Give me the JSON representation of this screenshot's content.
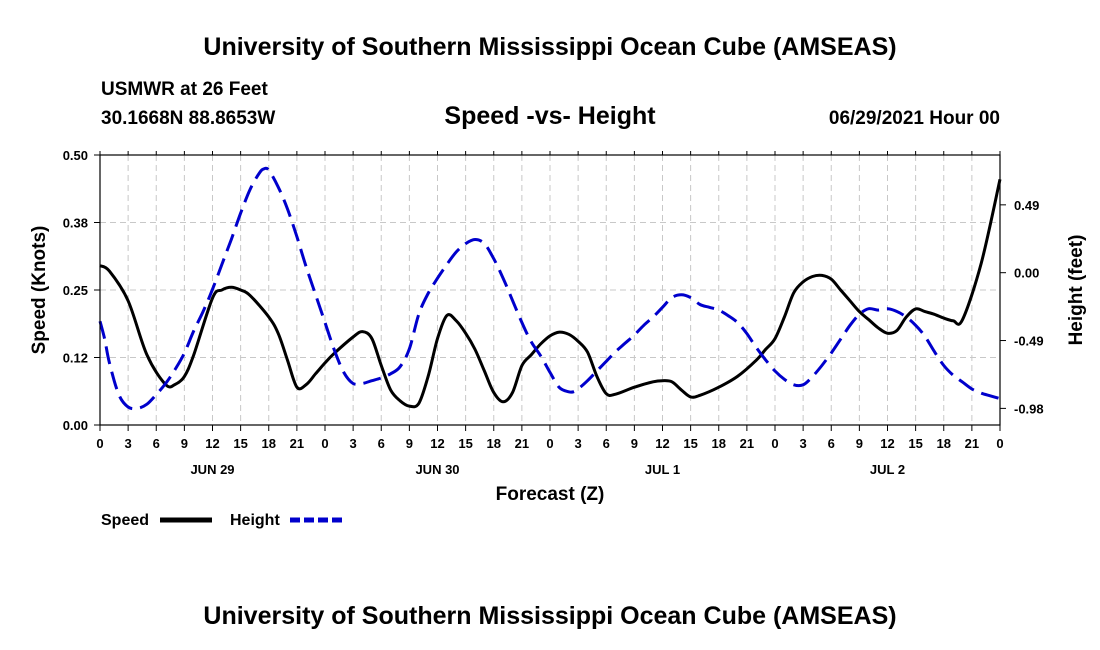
{
  "header": {
    "title": "University of Southern Mississippi Ocean Cube (AMSEAS)",
    "station": "USMWR at 26 Feet",
    "location": "30.1668N  88.8653W",
    "chart_title": "Speed -vs- Height",
    "datetime": "06/29/2021 Hour 00"
  },
  "footer": {
    "title": "University of Southern Mississippi Ocean Cube (AMSEAS)"
  },
  "legend": {
    "speed_label": "Speed",
    "height_label": "Height",
    "speed_color": "#000000",
    "height_color": "#0000cc"
  },
  "chart_data": {
    "type": "line",
    "title": "Speed -vs- Height",
    "xlabel": "Forecast (Z)",
    "ylabel_left": "Speed (Knots)",
    "ylabel_right": "Height (feet)",
    "x_range_hours": [
      0,
      96
    ],
    "ylim_left": [
      0,
      0.5
    ],
    "ylim_right": [
      -1.1,
      0.85
    ],
    "left_ticks": [
      "0.00",
      "0.12",
      "0.25",
      "0.38",
      "0.50"
    ],
    "left_tick_values": [
      0,
      0.125,
      0.25,
      0.375,
      0.5
    ],
    "right_ticks": [
      "-0.98",
      "-0.49",
      "0.00",
      "0.49"
    ],
    "right_tick_values": [
      -0.98,
      -0.49,
      0,
      0.49
    ],
    "x_tick_labels": [
      "0",
      "3",
      "6",
      "9",
      "12",
      "15",
      "18",
      "21",
      "0",
      "3",
      "6",
      "9",
      "12",
      "15",
      "18",
      "21",
      "0",
      "3",
      "6",
      "9",
      "12",
      "15",
      "18",
      "21",
      "0",
      "3",
      "6",
      "9",
      "12",
      "15",
      "18",
      "21",
      "0"
    ],
    "x_tick_hours": [
      0,
      3,
      6,
      9,
      12,
      15,
      18,
      21,
      24,
      27,
      30,
      33,
      36,
      39,
      42,
      45,
      48,
      51,
      54,
      57,
      60,
      63,
      66,
      69,
      72,
      75,
      78,
      81,
      84,
      87,
      90,
      93,
      96
    ],
    "date_labels": [
      "JUN 29",
      "JUN 30",
      "JUL 1",
      "JUL 2"
    ],
    "date_label_hours": [
      12,
      36,
      60,
      84
    ],
    "grid": true,
    "series": [
      {
        "name": "Speed",
        "axis": "left",
        "style": "solid",
        "color": "#000000",
        "x": [
          0,
          1,
          3,
          5,
          7,
          8,
          9,
          10,
          12,
          13,
          14,
          15,
          16,
          18,
          19,
          20,
          21,
          22,
          23,
          24,
          25,
          27,
          28,
          29,
          30,
          31,
          32,
          33,
          34,
          35,
          36,
          37,
          38,
          39,
          40,
          41,
          42,
          43,
          44,
          45,
          46,
          47,
          48,
          49,
          50,
          51,
          52,
          53,
          54,
          55,
          57,
          59,
          60,
          61,
          62,
          63,
          64,
          66,
          68,
          70,
          71,
          72,
          73,
          74,
          75,
          76,
          77,
          78,
          79,
          80,
          81,
          82,
          83,
          84,
          85,
          86,
          87,
          88,
          89,
          90,
          91,
          92,
          94,
          96
        ],
        "values": [
          0.295,
          0.285,
          0.23,
          0.13,
          0.075,
          0.075,
          0.09,
          0.13,
          0.235,
          0.25,
          0.255,
          0.25,
          0.24,
          0.2,
          0.17,
          0.12,
          0.07,
          0.075,
          0.095,
          0.115,
          0.133,
          0.163,
          0.173,
          0.16,
          0.11,
          0.065,
          0.045,
          0.035,
          0.04,
          0.09,
          0.16,
          0.203,
          0.193,
          0.17,
          0.14,
          0.1,
          0.06,
          0.043,
          0.06,
          0.11,
          0.13,
          0.15,
          0.165,
          0.172,
          0.168,
          0.155,
          0.135,
          0.09,
          0.058,
          0.057,
          0.07,
          0.08,
          0.082,
          0.08,
          0.065,
          0.052,
          0.055,
          0.07,
          0.09,
          0.12,
          0.14,
          0.16,
          0.2,
          0.245,
          0.265,
          0.275,
          0.277,
          0.27,
          0.25,
          0.23,
          0.21,
          0.195,
          0.18,
          0.17,
          0.175,
          0.2,
          0.215,
          0.21,
          0.205,
          0.198,
          0.193,
          0.195,
          0.3,
          0.455
        ]
      },
      {
        "name": "Height",
        "axis": "right",
        "style": "dashed",
        "color": "#0000cc",
        "x": [
          0,
          0.5,
          1,
          2,
          3,
          4,
          5,
          6,
          7,
          8,
          9,
          10,
          11,
          12,
          13,
          14,
          15,
          16,
          17,
          17.5,
          18,
          19,
          20,
          21,
          22,
          23,
          24,
          25,
          26,
          27,
          28,
          29,
          30,
          31,
          32,
          33,
          34,
          35,
          36,
          37,
          38,
          39,
          40,
          41,
          42,
          43,
          44,
          45,
          46,
          47,
          48,
          49,
          50,
          50.5,
          51,
          52,
          53,
          54,
          55,
          56,
          57,
          58,
          59,
          60,
          61,
          62,
          63,
          64,
          65,
          66,
          67,
          68,
          69,
          70,
          71,
          72,
          73,
          74,
          75,
          76,
          77,
          78,
          79,
          80,
          81,
          82,
          83,
          84,
          85,
          86,
          87,
          88,
          89,
          90,
          91,
          92,
          93,
          94,
          95,
          96
        ],
        "values": [
          -0.35,
          -0.48,
          -0.65,
          -0.88,
          -0.97,
          -0.98,
          -0.95,
          -0.88,
          -0.8,
          -0.7,
          -0.58,
          -0.42,
          -0.28,
          -0.12,
          0.06,
          0.24,
          0.43,
          0.6,
          0.72,
          0.75,
          0.74,
          0.62,
          0.46,
          0.26,
          0.04,
          -0.16,
          -0.36,
          -0.56,
          -0.72,
          -0.8,
          -0.8,
          -0.78,
          -0.76,
          -0.73,
          -0.68,
          -0.55,
          -0.3,
          -0.15,
          -0.04,
          0.06,
          0.15,
          0.21,
          0.24,
          0.21,
          0.1,
          -0.04,
          -0.2,
          -0.36,
          -0.5,
          -0.6,
          -0.72,
          -0.83,
          -0.86,
          -0.86,
          -0.84,
          -0.78,
          -0.71,
          -0.64,
          -0.57,
          -0.51,
          -0.45,
          -0.38,
          -0.32,
          -0.25,
          -0.18,
          -0.16,
          -0.18,
          -0.23,
          -0.25,
          -0.27,
          -0.31,
          -0.36,
          -0.44,
          -0.54,
          -0.63,
          -0.71,
          -0.77,
          -0.81,
          -0.81,
          -0.75,
          -0.67,
          -0.58,
          -0.48,
          -0.38,
          -0.3,
          -0.26,
          -0.27,
          -0.26,
          -0.28,
          -0.32,
          -0.38,
          -0.46,
          -0.57,
          -0.67,
          -0.74,
          -0.79,
          -0.84,
          -0.87,
          -0.89,
          -0.91
        ]
      }
    ]
  }
}
